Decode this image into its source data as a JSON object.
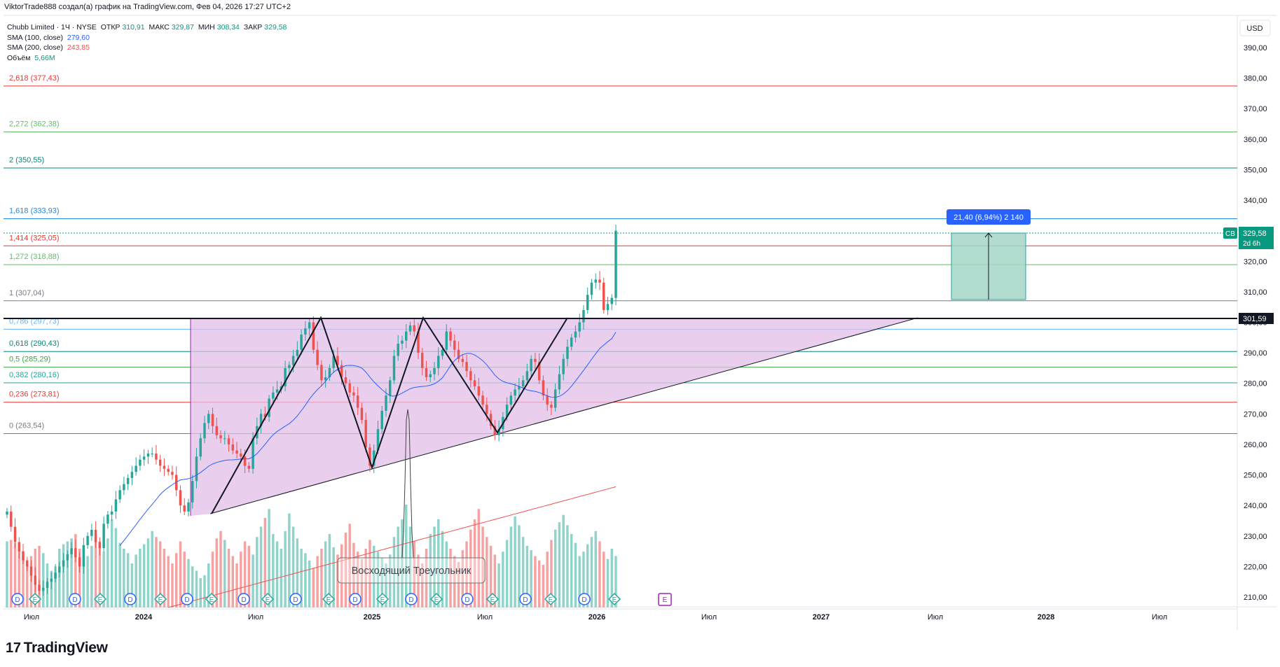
{
  "header": {
    "attribution": "ViktorTrade888 создал(а) график на TradingView.com, Фев 04, 2026 17:27 UTC+2"
  },
  "legend": {
    "symbol": "Chubb Limited · 1Ч · NYSE",
    "open_label": "ОТКР",
    "open_value": "310,91",
    "high_label": "МАКС",
    "high_value": "329,87",
    "low_label": "МИН",
    "low_value": "308,34",
    "close_label": "ЗАКР",
    "close_value": "329,58",
    "sma100_label": "SMA (100, close)",
    "sma100_value": "279,60",
    "sma200_label": "SMA (200, close)",
    "sma200_value": "243,85",
    "volume_label": "Объём",
    "volume_value": "5,66M"
  },
  "currency": "USD",
  "price_badge": {
    "symbol_tag": "CB",
    "price": "329,58",
    "countdown": "2d 6h"
  },
  "level_badge": "301,59",
  "measure_label": "21,40 (6,94%) 2 140",
  "pattern_label": "Восходящий Треугольник",
  "branding": "TradingView",
  "colors": {
    "up": "#26a69a",
    "down": "#ef5350",
    "vol_up": "#8fd3cb",
    "vol_down": "#f5a3a2",
    "triangle_fill": "#e1bee7",
    "sma100": "#2962ff",
    "sma200": "#ef5350",
    "measure_fill": "#a5d6c7"
  },
  "chart_data": {
    "type": "candlestick",
    "symbol": "Chubb Limited",
    "y_axis": {
      "range": [
        205,
        395
      ],
      "ticks": [
        "210,00",
        "220,00",
        "230,00",
        "240,00",
        "250,00",
        "260,00",
        "270,00",
        "280,00",
        "290,00",
        "300,00",
        "310,00",
        "320,00",
        "330,00",
        "340,00",
        "350,00",
        "360,00",
        "370,00",
        "380,00",
        "390,00"
      ]
    },
    "x_axis": {
      "ticks": [
        "Июл",
        "2024",
        "Июл",
        "2025",
        "Июл",
        "2026",
        "Июл",
        "2027",
        "Июл",
        "2028",
        "Июл"
      ]
    },
    "fibonacci": [
      {
        "ratio": "2,618",
        "price": 377.43,
        "label": "(377,43)",
        "color": "#e53935"
      },
      {
        "ratio": "2,272",
        "price": 362.38,
        "label": "(362,38)",
        "color": "#66bb6a"
      },
      {
        "ratio": "2",
        "price": 350.55,
        "label": "(350,55)",
        "color": "#00897b"
      },
      {
        "ratio": "1,618",
        "price": 333.93,
        "label": "(333,93)",
        "color": "#1e88e5"
      },
      {
        "ratio": "1,414",
        "price": 325.05,
        "label": "(325,05)",
        "color": "#e53935"
      },
      {
        "ratio": "1,272",
        "price": 318.88,
        "label": "(318,88)",
        "color": "#66bb6a"
      },
      {
        "ratio": "1",
        "price": 307.04,
        "label": "(307,04)",
        "color": "#787b86"
      },
      {
        "ratio": "0,786",
        "price": 297.73,
        "label": "(297,73)",
        "color": "#64b5f6"
      },
      {
        "ratio": "0,618",
        "price": 290.43,
        "label": "(290,43)",
        "color": "#00897b"
      },
      {
        "ratio": "0,5",
        "price": 285.29,
        "label": "(285,29)",
        "color": "#43a047"
      },
      {
        "ratio": "0,382",
        "price": 280.16,
        "label": "(280,16)",
        "color": "#26a69a"
      },
      {
        "ratio": "0,236",
        "price": 273.81,
        "label": "(273,81)",
        "color": "#e53935"
      },
      {
        "ratio": "0",
        "price": 263.54,
        "label": "(263,54)",
        "color": "#787b86"
      }
    ],
    "resistance": 301.59,
    "last_close": 329.58,
    "measure": {
      "from": 308.18,
      "to": 329.58
    },
    "closes": [
      238,
      233,
      228,
      225,
      222,
      220,
      217,
      214,
      212,
      213,
      215,
      216,
      218,
      220,
      222,
      224,
      226,
      223,
      220,
      227,
      230,
      232,
      228,
      226,
      234,
      237,
      238,
      242,
      245,
      247,
      249,
      251,
      253,
      255,
      256,
      257,
      257,
      255,
      253,
      252,
      251,
      250,
      245,
      240,
      238,
      241,
      248,
      256,
      262,
      267,
      270,
      266,
      263,
      262,
      262,
      260,
      258,
      257,
      256,
      253,
      252,
      262,
      266,
      270,
      269,
      275,
      277,
      278,
      279,
      285,
      286,
      289,
      291,
      296,
      298,
      300,
      291,
      286,
      281,
      282,
      285,
      289,
      286,
      282,
      280,
      277,
      276,
      272,
      268,
      259,
      253,
      258,
      265,
      271,
      276,
      281,
      289,
      293,
      294,
      297,
      299,
      297,
      290,
      285,
      282,
      283,
      285,
      289,
      291,
      297,
      294,
      291,
      288,
      287,
      284,
      281,
      279,
      276,
      273,
      270,
      266,
      263,
      265,
      269,
      273,
      276,
      278,
      279,
      281,
      284,
      288,
      287,
      281,
      276,
      273,
      272,
      278,
      283,
      288,
      292,
      295,
      297,
      300,
      304,
      309,
      313,
      314,
      313,
      304,
      306,
      308,
      330
    ],
    "volumes": [
      0.45,
      0.46,
      0.44,
      0.4,
      0.35,
      0.3,
      0.35,
      0.4,
      0.42,
      0.37,
      0.3,
      0.25,
      0.28,
      0.4,
      0.43,
      0.45,
      0.47,
      0.5,
      0.4,
      0.3,
      0.35,
      0.42,
      0.48,
      0.45,
      0.38,
      0.47,
      0.6,
      0.54,
      0.44,
      0.4,
      0.37,
      0.3,
      0.36,
      0.4,
      0.43,
      0.47,
      0.52,
      0.48,
      0.45,
      0.4,
      0.35,
      0.3,
      0.37,
      0.45,
      0.38,
      0.33,
      0.28,
      0.25,
      0.2,
      0.22,
      0.3,
      0.38,
      0.47,
      0.52,
      0.46,
      0.4,
      0.35,
      0.3,
      0.38,
      0.45,
      0.42,
      0.36,
      0.48,
      0.55,
      0.61,
      0.67,
      0.5,
      0.45,
      0.4,
      0.52,
      0.64,
      0.55,
      0.47,
      0.4,
      0.37,
      0.32,
      0.27,
      0.35,
      0.4,
      0.45,
      0.5,
      0.41,
      0.36,
      0.43,
      0.51,
      0.57,
      0.44,
      0.38,
      0.33,
      0.4,
      0.46,
      0.42,
      0.38,
      0.34,
      0.3,
      0.36,
      0.48,
      0.55,
      0.6,
      0.7,
      0.55,
      0.45,
      0.36,
      0.3,
      0.4,
      0.5,
      0.55,
      0.6,
      0.52,
      0.45,
      0.4,
      0.35,
      0.31,
      0.39,
      0.45,
      0.53,
      0.6,
      0.67,
      0.55,
      0.48,
      0.42,
      0.36,
      0.3,
      0.38,
      0.46,
      0.55,
      0.62,
      0.56,
      0.48,
      0.42,
      0.39,
      0.35,
      0.32,
      0.29,
      0.38,
      0.46,
      0.53,
      0.58,
      0.63,
      0.56,
      0.5,
      0.44,
      0.35,
      0.38,
      0.43,
      0.48,
      0.52,
      0.45,
      0.38,
      0.33,
      0.4,
      0.35
    ]
  }
}
